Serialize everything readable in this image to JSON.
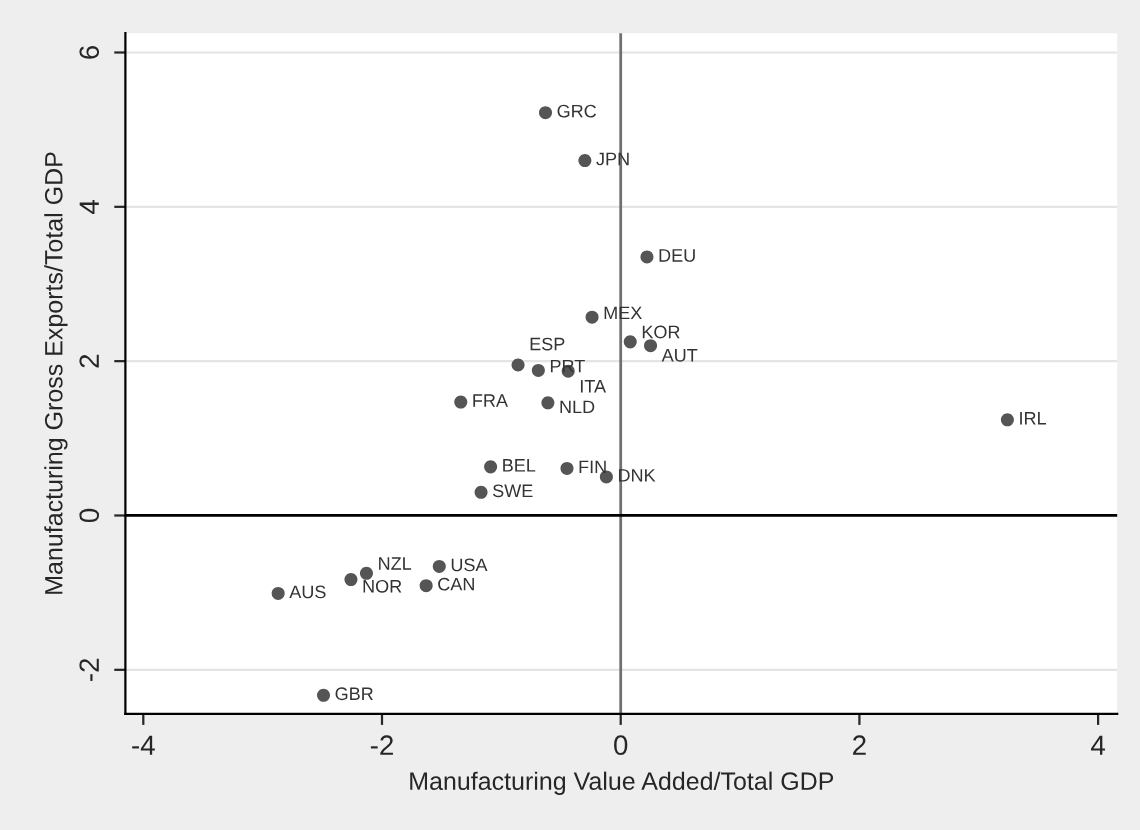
{
  "chart_data": {
    "type": "scatter",
    "xlabel": "Manufacturing Value Added/Total GDP",
    "ylabel": "Manufacturing Gross Exports/Total GDP",
    "x": [
      -0.63,
      -0.3,
      0.22,
      -0.24,
      0.08,
      0.25,
      -0.86,
      -0.69,
      -0.44,
      -1.34,
      -0.61,
      3.24,
      -1.09,
      -0.45,
      -0.12,
      -1.17,
      -1.52,
      -2.13,
      -2.26,
      -1.63,
      -2.87,
      -2.49
    ],
    "series": [
      {
        "color": "#555555",
        "values": [
          5.22,
          4.6,
          3.35,
          2.57,
          2.25,
          2.2,
          1.95,
          1.88,
          1.87,
          1.47,
          1.46,
          1.24,
          0.63,
          0.61,
          0.5,
          0.3,
          -0.66,
          -0.75,
          -0.83,
          -0.91,
          -1.01,
          -2.33
        ]
      }
    ],
    "annotations": [
      {
        "text": "GRC",
        "x": -0.63,
        "y": 5.22
      },
      {
        "text": "JPN",
        "x": -0.3,
        "y": 4.6
      },
      {
        "text": "DEU",
        "x": 0.22,
        "y": 3.35
      },
      {
        "text": "MEX",
        "x": -0.24,
        "y": 2.57
      },
      {
        "text": "KOR",
        "x": 0.08,
        "y": 2.25
      },
      {
        "text": "AUT",
        "x": 0.25,
        "y": 2.2
      },
      {
        "text": "ESP",
        "x": -0.86,
        "y": 1.95
      },
      {
        "text": "PRT",
        "x": -0.69,
        "y": 1.88
      },
      {
        "text": "ITA",
        "x": -0.44,
        "y": 1.87
      },
      {
        "text": "FRA",
        "x": -1.34,
        "y": 1.47
      },
      {
        "text": "NLD",
        "x": -0.61,
        "y": 1.46
      },
      {
        "text": "IRL",
        "x": 3.24,
        "y": 1.24
      },
      {
        "text": "BEL",
        "x": -1.09,
        "y": 0.63
      },
      {
        "text": "FIN",
        "x": -0.45,
        "y": 0.61
      },
      {
        "text": "DNK",
        "x": -0.12,
        "y": 0.5
      },
      {
        "text": "SWE",
        "x": -1.17,
        "y": 0.3
      },
      {
        "text": "USA",
        "x": -1.52,
        "y": -0.66
      },
      {
        "text": "NZL",
        "x": -2.13,
        "y": -0.75
      },
      {
        "text": "NOR",
        "x": -2.26,
        "y": -0.83
      },
      {
        "text": "CAN",
        "x": -1.63,
        "y": -0.91
      },
      {
        "text": "AUS",
        "x": -2.87,
        "y": -1.01
      },
      {
        "text": "GBR",
        "x": -2.49,
        "y": -2.33
      }
    ],
    "ref_lines": [
      {
        "axis": "x",
        "value": 0,
        "color": "#707070"
      },
      {
        "axis": "y",
        "value": 0,
        "color": "#000000"
      }
    ],
    "xlim": [
      -4.15,
      4.16
    ],
    "ylim": [
      -2.57,
      6.25
    ],
    "xticks": [
      -4,
      -2,
      0,
      2,
      4
    ],
    "yticks": [
      -2,
      0,
      2,
      4,
      6
    ],
    "grid": "y",
    "marker": "circle",
    "legend": false
  }
}
